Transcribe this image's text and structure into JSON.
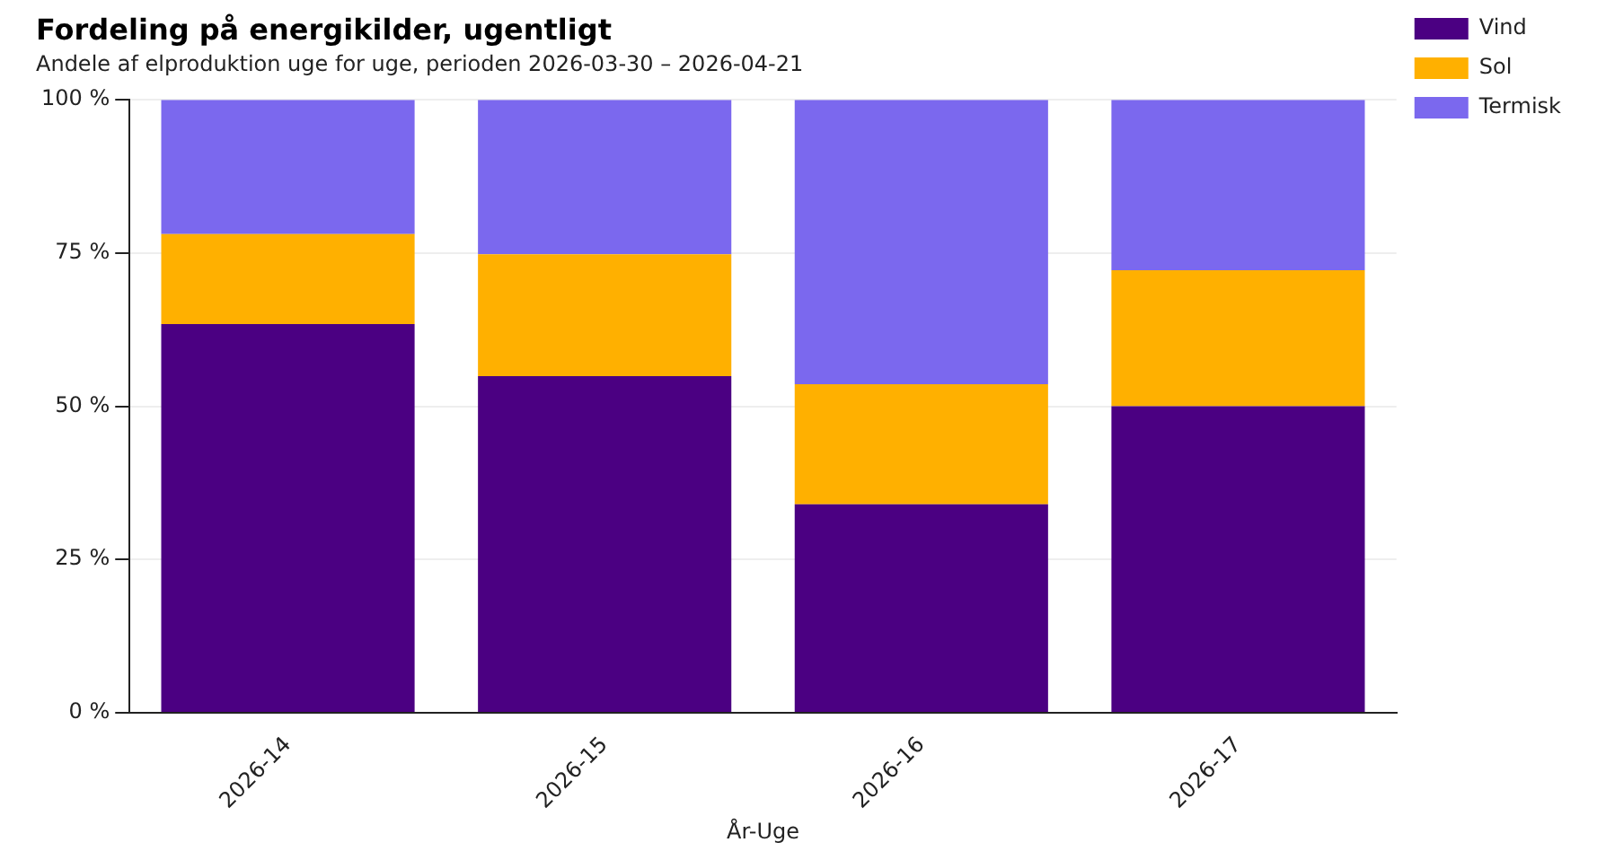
{
  "chart_data": {
    "type": "bar",
    "title": "Fordeling på energikilder, ugentligt",
    "subtitle": "Andele af elproduktion uge for uge, perioden 2026-03-30 – 2026-04-21",
    "xlabel": "År-Uge",
    "categories": [
      "2026-14",
      "2026-15",
      "2026-16",
      "2026-17"
    ],
    "stacked": true,
    "series": [
      {
        "name": "Vind",
        "color": "#4b0082",
        "values": [
          63.4,
          54.9,
          34.0,
          50.0
        ]
      },
      {
        "name": "Sol",
        "color": "#ffb000",
        "values": [
          14.7,
          19.9,
          19.6,
          22.2
        ]
      },
      {
        "name": "Termisk",
        "color": "#7b68ee",
        "values": [
          21.9,
          25.2,
          46.4,
          27.8
        ]
      }
    ],
    "ylim": [
      0,
      100
    ],
    "yticks": [
      {
        "value": 0,
        "label": "0 %"
      },
      {
        "value": 25,
        "label": "25 %"
      },
      {
        "value": 50,
        "label": "50 %"
      },
      {
        "value": 75,
        "label": "75 %"
      },
      {
        "value": 100,
        "label": "100 %"
      }
    ],
    "grid": "y",
    "legend": "top right"
  }
}
